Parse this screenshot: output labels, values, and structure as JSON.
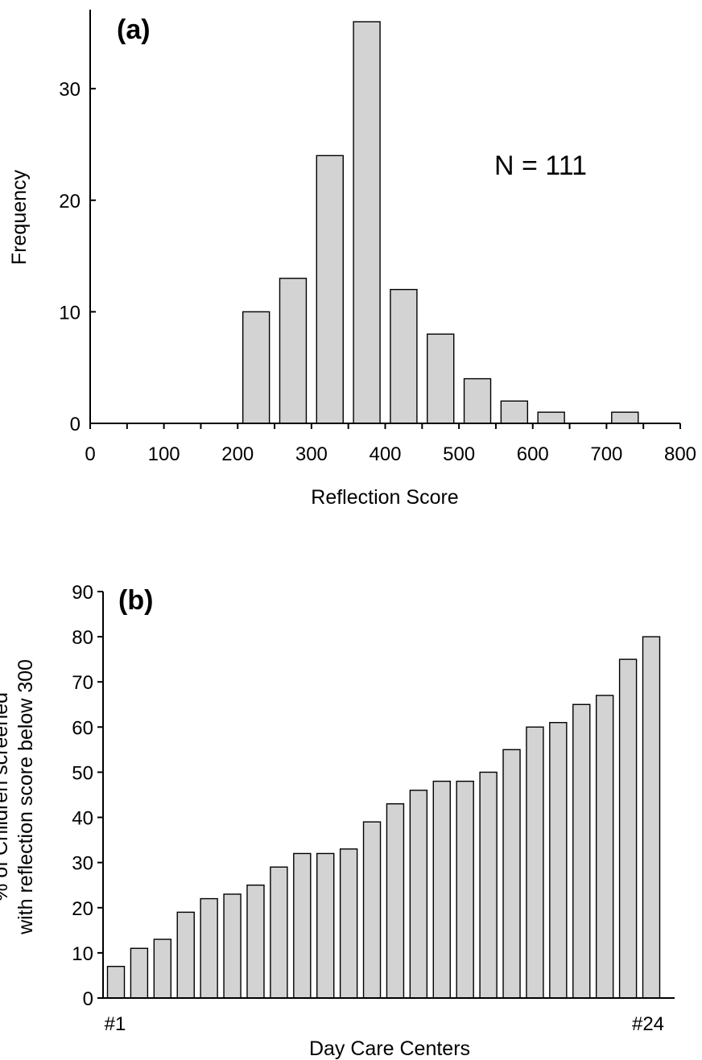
{
  "chart_data": [
    {
      "type": "bar",
      "panel_label": "(a)",
      "annotation": "N = 111",
      "xlabel": "Reflection Score",
      "ylabel": "Frequency",
      "xlim": [
        0,
        800
      ],
      "ylim": [
        0,
        36
      ],
      "x_ticks": [
        0,
        100,
        200,
        300,
        400,
        500,
        600,
        700,
        800
      ],
      "y_ticks": [
        0,
        10,
        20,
        30
      ],
      "bin_width": 50,
      "bins": [
        {
          "x": 225,
          "value": 10
        },
        {
          "x": 275,
          "value": 13
        },
        {
          "x": 325,
          "value": 24
        },
        {
          "x": 375,
          "value": 36
        },
        {
          "x": 425,
          "value": 12
        },
        {
          "x": 475,
          "value": 8
        },
        {
          "x": 525,
          "value": 4
        },
        {
          "x": 575,
          "value": 2
        },
        {
          "x": 625,
          "value": 1
        },
        {
          "x": 675,
          "value": 0
        },
        {
          "x": 725,
          "value": 1
        }
      ],
      "grid": false
    },
    {
      "type": "bar",
      "panel_label": "(b)",
      "xlabel": "Day Care Centers",
      "ylabel_lines": [
        "% of Children screened",
        "with reflection score below 300"
      ],
      "ylim": [
        0,
        90
      ],
      "y_ticks": [
        0,
        10,
        20,
        30,
        40,
        50,
        60,
        70,
        80,
        90
      ],
      "x_end_labels": [
        "#1",
        "#24"
      ],
      "values": [
        7,
        11,
        13,
        19,
        22,
        23,
        25,
        29,
        32,
        32,
        33,
        39,
        43,
        46,
        48,
        48,
        50,
        55,
        60,
        61,
        65,
        67,
        75,
        80
      ],
      "grid": false
    }
  ]
}
